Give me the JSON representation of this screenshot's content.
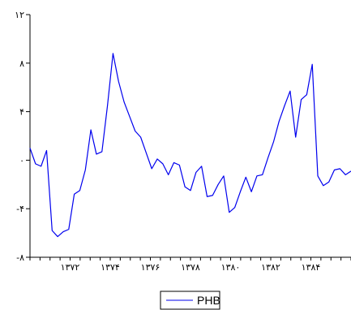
{
  "chart_data": {
    "type": "line",
    "title": "",
    "xlabel": "",
    "ylabel": "",
    "ylim": [
      -8,
      12
    ],
    "y_ticks": [
      {
        "value": 12,
        "label": "۱۲"
      },
      {
        "value": 8,
        "label": "۸"
      },
      {
        "value": 4,
        "label": "۴"
      },
      {
        "value": 0,
        "label": "۰"
      },
      {
        "value": -4,
        "label": "-۴"
      },
      {
        "value": -8,
        "label": "-۸"
      }
    ],
    "x_period_range": [
      1370,
      1386
    ],
    "x_ticks": [
      {
        "value": 1372,
        "label": "۱۳۷۲"
      },
      {
        "value": 1374,
        "label": "۱۳۷۴"
      },
      {
        "value": 1376,
        "label": "۱۳۷۶"
      },
      {
        "value": 1378,
        "label": "۱۳۷۸"
      },
      {
        "value": 1380,
        "label": "۱۳۸۰"
      },
      {
        "value": 1382,
        "label": "۱۳۸۲"
      },
      {
        "value": 1384,
        "label": "۱۳۸۴"
      }
    ],
    "legend_position": "bottom-center",
    "grid": false,
    "series": [
      {
        "name": "PHB",
        "color": "#0000ee",
        "values": [
          1.0,
          -0.3,
          -0.5,
          0.8,
          -5.8,
          -6.3,
          -5.9,
          -5.7,
          -2.8,
          -2.5,
          -0.8,
          2.5,
          0.5,
          0.7,
          4.5,
          8.8,
          6.5,
          4.8,
          3.6,
          2.4,
          1.9,
          0.6,
          -0.7,
          0.1,
          -0.3,
          -1.2,
          -0.2,
          -0.4,
          -2.2,
          -2.5,
          -1.0,
          -0.5,
          -3.0,
          -2.9,
          -2.0,
          -1.3,
          -4.3,
          -3.9,
          -2.6,
          -1.4,
          -2.6,
          -1.3,
          -1.2,
          0.2,
          1.5,
          3.2,
          4.5,
          5.7,
          1.9,
          5.0,
          5.4,
          7.9,
          -1.3,
          -2.1,
          -1.8,
          -0.8,
          -0.7,
          -1.2,
          -0.9
        ]
      }
    ]
  }
}
